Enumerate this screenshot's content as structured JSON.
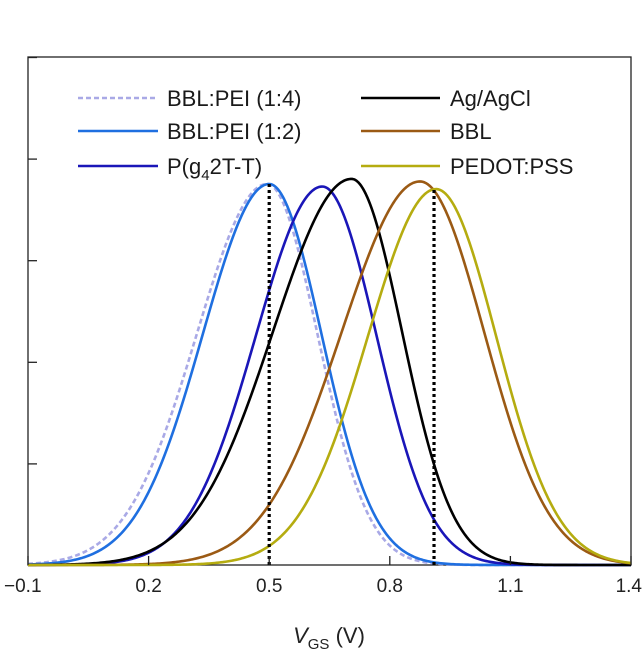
{
  "chart_data": {
    "type": "line",
    "xlabel": "V",
    "xlabel_sub": "GS",
    "xlabel_unit": " (V)",
    "xlim": [
      -0.1,
      1.4
    ],
    "xticks": [
      -0.1,
      0.2,
      0.5,
      0.8,
      1.1,
      1.4
    ],
    "xtick_labels": [
      "−0.1",
      "0.2",
      "0.5",
      "0.8",
      "1.1",
      "1.4"
    ],
    "ylim": [
      0,
      1.0
    ],
    "yticks": [
      0.2,
      0.4,
      0.6,
      0.8,
      1.0
    ],
    "ylabel": "",
    "legend_placement": "top",
    "series": [
      {
        "name": "BBL:PEI (1:4)",
        "mu": 0.495,
        "peak": 0.75,
        "sigma_left": 0.175,
        "sigma_right": 0.125,
        "color": "#a9a9e6",
        "dashed": true
      },
      {
        "name": "BBL:PEI (1:2)",
        "mu": 0.5,
        "peak": 0.75,
        "sigma_left": 0.165,
        "sigma_right": 0.13,
        "color": "#1f6fe0",
        "dashed": false
      },
      {
        "name": "P(g42T-T)",
        "mu": 0.632,
        "peak": 0.745,
        "sigma_left": 0.165,
        "sigma_right": 0.135,
        "color": "#1a16b8",
        "dashed": false
      },
      {
        "name": "Ag/AgCl",
        "mu": 0.705,
        "peak": 0.76,
        "sigma_left": 0.195,
        "sigma_right": 0.125,
        "color": "#000000",
        "dashed": false
      },
      {
        "name": "BBL",
        "mu": 0.875,
        "peak": 0.755,
        "sigma_left": 0.195,
        "sigma_right": 0.16,
        "color": "#9b5a14",
        "dashed": false
      },
      {
        "name": "PEDOT:PSS",
        "mu": 0.915,
        "peak": 0.74,
        "sigma_left": 0.17,
        "sigma_right": 0.15,
        "color": "#b5ac10",
        "dashed": false
      }
    ],
    "vlines": [
      0.5,
      0.91
    ],
    "vline_style": "dotted"
  }
}
